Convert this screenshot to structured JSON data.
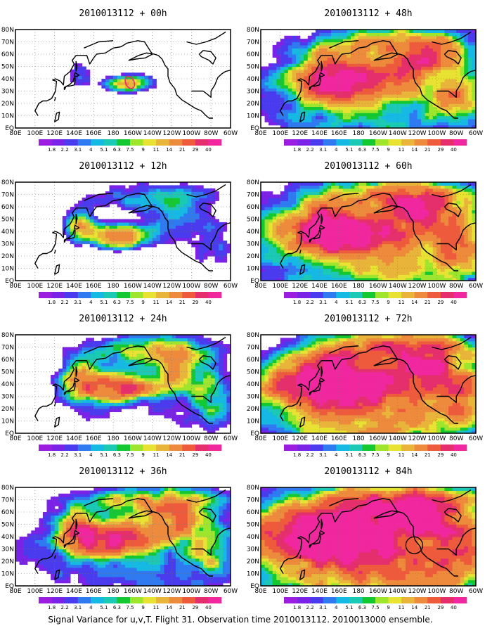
{
  "figure": {
    "caption": "Signal Variance for u,v,T. Flight 31. Observation time 2010013112. 2010013000 ensemble.",
    "colorbar": {
      "labels": [
        "1.8",
        "2.2",
        "3.1",
        "4",
        "5.1",
        "6.3",
        "7.5",
        "9",
        "11",
        "14",
        "21",
        "29",
        "40"
      ],
      "colors": [
        "#9b1ee0",
        "#7a22e6",
        "#4a3cee",
        "#2f7af0",
        "#16b8e4",
        "#1bc9b5",
        "#14c832",
        "#9ee62e",
        "#e8e233",
        "#e8b43a",
        "#ee8a3c",
        "#ee5a3c",
        "#e52e6c",
        "#f0279e"
      ]
    },
    "lon_labels": [
      "80E",
      "100E",
      "120E",
      "140E",
      "160E",
      "180",
      "160W",
      "140W",
      "120W",
      "100W",
      "80W",
      "60W"
    ],
    "lat_labels": [
      "EQ",
      "10N",
      "20N",
      "30N",
      "40N",
      "50N",
      "60N",
      "70N",
      "80N"
    ],
    "panels": [
      {
        "title": "2010013112 + 00h",
        "hour": 0
      },
      {
        "title": "2010013112 + 48h",
        "hour": 48
      },
      {
        "title": "2010013112 + 12h",
        "hour": 12
      },
      {
        "title": "2010013112 + 60h",
        "hour": 60
      },
      {
        "title": "2010013112 + 24h",
        "hour": 24
      },
      {
        "title": "2010013112 + 72h",
        "hour": 72
      },
      {
        "title": "2010013112 + 36h",
        "hour": 36
      },
      {
        "title": "2010013112 + 84h",
        "hour": 84
      }
    ]
  }
}
